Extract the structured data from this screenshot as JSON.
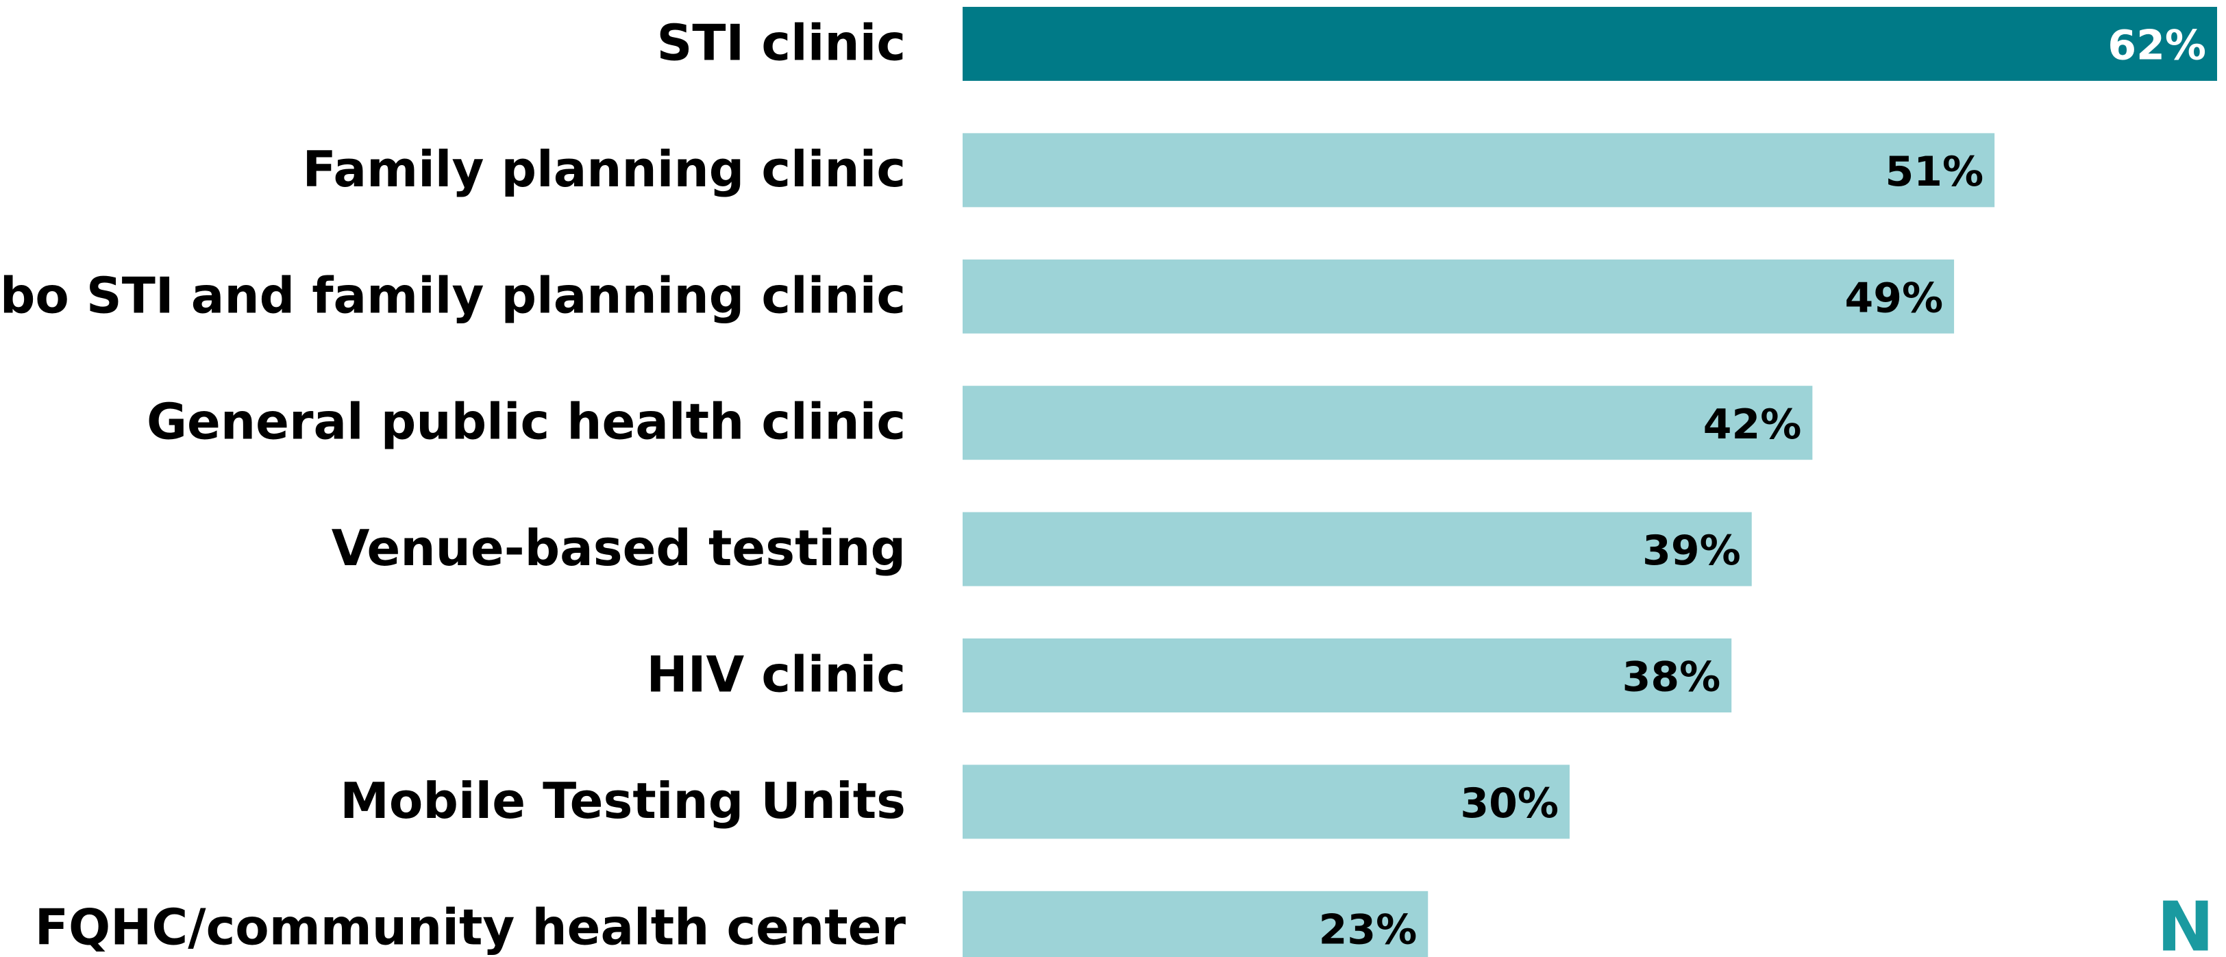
{
  "chart_data": {
    "type": "hbar",
    "categories": [
      "STI clinic",
      "Family planning clinic",
      "Combo STI and family planning clinic",
      "General public health clinic",
      "Venue-based testing",
      "HIV clinic",
      "Mobile Testing Units",
      "FQHC/community health center"
    ],
    "values": [
      62,
      51,
      49,
      42,
      39,
      38,
      30,
      23
    ],
    "value_labels": [
      "62%",
      "51%",
      "49%",
      "42%",
      "39%",
      "38%",
      "30%",
      "23%"
    ],
    "colors": [
      "#007a87",
      "#9dd3d7",
      "#9dd3d7",
      "#9dd3d7",
      "#9dd3d7",
      "#9dd3d7",
      "#9dd3d7",
      "#9dd3d7"
    ],
    "logo_text": "N"
  }
}
